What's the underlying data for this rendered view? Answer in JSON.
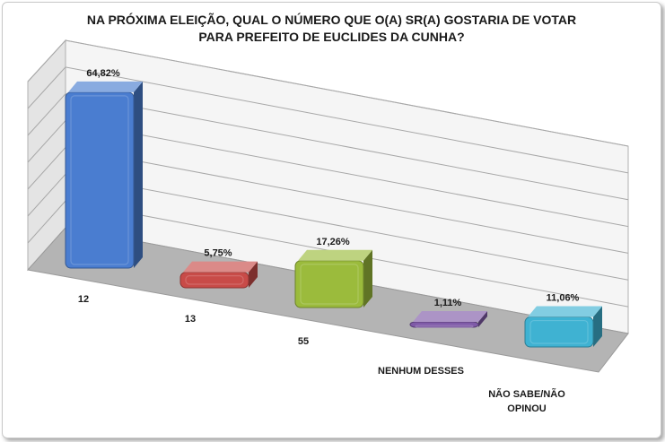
{
  "chart_data": {
    "type": "bar",
    "title_lines": [
      "NA PRÓXIMA ELEIÇÃO, QUAL O NÚMERO QUE O(A) SR(A) GOSTARIA DE VOTAR",
      "PARA PREFEITO DE EUCLIDES DA CUNHA?"
    ],
    "categories": [
      "12",
      "13",
      "55",
      "NENHUM DESSES",
      "NÃO SABE/NÃO OPINOU"
    ],
    "category_lines": [
      [
        "12"
      ],
      [
        "13"
      ],
      [
        "55"
      ],
      [
        "NENHUM DESSES"
      ],
      [
        "NÃO SABE/NÃO",
        "OPINOU"
      ]
    ],
    "values": [
      64.82,
      5.75,
      17.26,
      1.11,
      11.06
    ],
    "value_labels": [
      "64,82%",
      "5,75%",
      "17,26%",
      "1,11%",
      "11,06%"
    ],
    "colors": [
      "#4a7dd0",
      "#c84b48",
      "#9bbb3c",
      "#7f5aa8",
      "#3fb2d2"
    ],
    "ylim": [
      0,
      70
    ],
    "grid": true,
    "legend": "none",
    "style": "3d-perspective"
  }
}
